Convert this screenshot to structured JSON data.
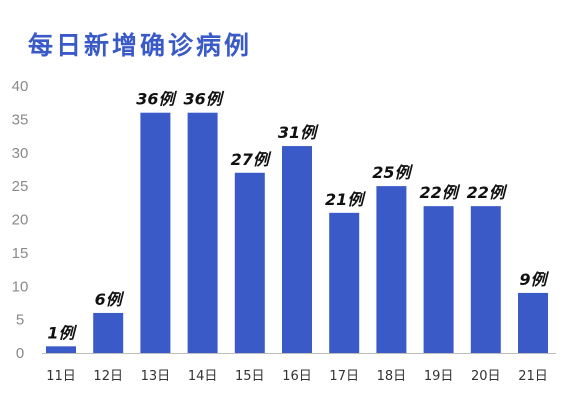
{
  "chart_data": {
    "type": "bar",
    "title": "每日新增确诊病例",
    "categories": [
      "11日",
      "12日",
      "13日",
      "14日",
      "15日",
      "16日",
      "17日",
      "18日",
      "19日",
      "20日",
      "21日"
    ],
    "values": [
      1,
      6,
      36,
      36,
      27,
      31,
      21,
      25,
      22,
      22,
      9
    ],
    "data_labels": [
      "1例",
      "6例",
      "36例",
      "36例",
      "27例",
      "31例",
      "21例",
      "25例",
      "22例",
      "22例",
      "9例"
    ],
    "xlabel": "",
    "ylabel": "",
    "ylim": [
      0,
      40
    ],
    "yticks": [
      0,
      5,
      10,
      15,
      20,
      25,
      30,
      35,
      40
    ],
    "grid": false,
    "legend": "none",
    "bar_color": "#3a5bc7",
    "title_color": "#3a5bc7"
  }
}
